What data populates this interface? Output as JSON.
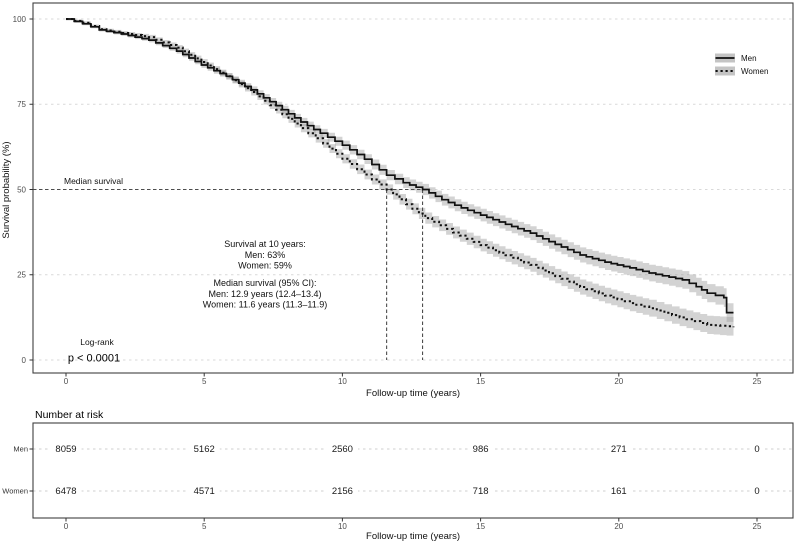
{
  "figure": {
    "background": "#ffffff",
    "panel_border_color": "#3f3f3f",
    "gridline_color": "#d9d9d9",
    "band_color": "#9e9e9e",
    "curve_color": "#111111",
    "median_line_color": "#4d4d4d"
  },
  "chart_data": {
    "type": "line",
    "subtype": "kaplan-meier-survival",
    "title": "",
    "xlabel": "Follow-up time (years)",
    "ylabel": "Survival probability (%)",
    "xlim": [
      0,
      25
    ],
    "ylim": [
      0,
      100
    ],
    "xticks": [
      0,
      5,
      10,
      15,
      20,
      25
    ],
    "yticks": [
      0,
      25,
      50,
      75,
      100
    ],
    "grid": "horizontal-dashed",
    "legend_position": "top-right",
    "legend": [
      "Men",
      "Women"
    ],
    "series": [
      {
        "name": "Men",
        "line": "solid",
        "points": [
          [
            0,
            100
          ],
          [
            0.6,
            98.6
          ],
          [
            1.2,
            96.8
          ],
          [
            2,
            95.6
          ],
          [
            3,
            93.8
          ],
          [
            4,
            90.6
          ],
          [
            4.9,
            86.5
          ],
          [
            5.8,
            83.2
          ],
          [
            6.7,
            79.2
          ],
          [
            7.6,
            74.6
          ],
          [
            8.5,
            69.8
          ],
          [
            9.2,
            66.5
          ],
          [
            10,
            63
          ],
          [
            10.8,
            58.9
          ],
          [
            11.6,
            54.2
          ],
          [
            12.2,
            52
          ],
          [
            12.9,
            50
          ],
          [
            13.6,
            47
          ],
          [
            14.3,
            44.6
          ],
          [
            15,
            42.5
          ],
          [
            15.9,
            39.8
          ],
          [
            16.8,
            37.2
          ],
          [
            17.7,
            33.9
          ],
          [
            18.6,
            30.8
          ],
          [
            19.5,
            28.7
          ],
          [
            20.4,
            27
          ],
          [
            21.1,
            25.5
          ],
          [
            22.3,
            23.5
          ],
          [
            22.8,
            21.5
          ],
          [
            23.2,
            19.6
          ],
          [
            23.8,
            18.3
          ],
          [
            23.9,
            13.9
          ],
          [
            24.15,
            13.9
          ]
        ]
      },
      {
        "name": "Women",
        "line": "dotted",
        "points": [
          [
            0,
            100
          ],
          [
            0.6,
            98.9
          ],
          [
            1.2,
            97
          ],
          [
            2,
            95.9
          ],
          [
            3,
            94.7
          ],
          [
            4,
            91.6
          ],
          [
            4.9,
            87.4
          ],
          [
            5.8,
            83.2
          ],
          [
            6.7,
            78.6
          ],
          [
            7.6,
            73.4
          ],
          [
            8.5,
            68
          ],
          [
            9.3,
            63.5
          ],
          [
            10,
            59
          ],
          [
            10.8,
            54.4
          ],
          [
            11.6,
            50
          ],
          [
            12.3,
            45.7
          ],
          [
            13,
            41.6
          ],
          [
            14,
            37.4
          ],
          [
            15,
            33.7
          ],
          [
            15.9,
            30.7
          ],
          [
            16.8,
            27.9
          ],
          [
            17.7,
            24.6
          ],
          [
            18.6,
            21.4
          ],
          [
            19.5,
            18.9
          ],
          [
            20.4,
            16.7
          ],
          [
            21.1,
            15.2
          ],
          [
            22.2,
            12.5
          ],
          [
            23.2,
            10.3
          ],
          [
            23.9,
            9.9
          ],
          [
            24.15,
            9.6
          ]
        ]
      }
    ],
    "medians": {
      "label": "Median survival",
      "men_years": 12.9,
      "women_years": 11.6,
      "survival_pct": 50
    },
    "annotations": {
      "survival_at_10": {
        "title": "Survival at 10 years:",
        "men": "Men: 63%",
        "women": "Women: 59%"
      },
      "median_ci": {
        "title": "Median survival (95% CI):",
        "men": "Men: 12.9 years (12.4–13.4)",
        "women": "Women: 11.6 years (11.3–11.9)"
      },
      "logrank": {
        "test": "Log-rank",
        "p": "p < 0.0001"
      }
    },
    "risk_table": {
      "title": "Number at risk",
      "xlabel": "Follow-up time (years)",
      "times": [
        0,
        5,
        10,
        15,
        20,
        25
      ],
      "rows": [
        {
          "label": "Men",
          "values": [
            "8059",
            "5162",
            "2560",
            "986",
            "271",
            "0"
          ]
        },
        {
          "label": "Women",
          "values": [
            "6478",
            "4571",
            "2156",
            "718",
            "161",
            "0"
          ]
        }
      ]
    }
  }
}
